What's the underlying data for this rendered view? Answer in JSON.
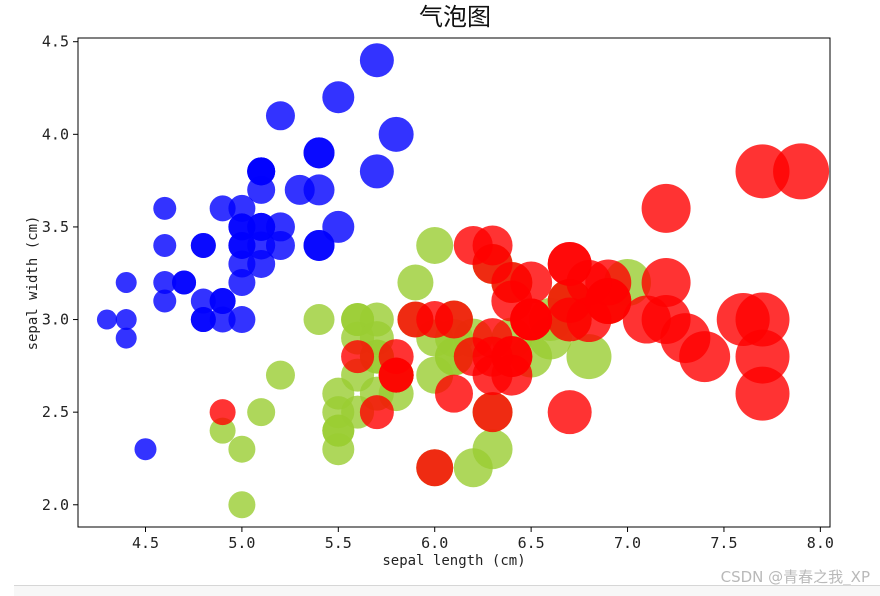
{
  "watermark": "CSDN @青春之我_XP",
  "chart_data": {
    "type": "scatter",
    "title": "气泡图",
    "xlabel": "sepal length (cm)",
    "ylabel": "sepal width (cm)",
    "xlim": [
      4.15,
      8.05
    ],
    "ylim": [
      1.88,
      4.52
    ],
    "x_ticks": [
      4.5,
      5.0,
      5.5,
      6.0,
      6.5,
      7.0,
      7.5,
      8.0
    ],
    "y_ticks": [
      2.0,
      2.5,
      3.0,
      3.5,
      4.0,
      4.5
    ],
    "x_tick_labels": [
      "4.5",
      "5.0",
      "5.5",
      "6.0",
      "6.5",
      "7.0",
      "7.5",
      "8.0"
    ],
    "y_tick_labels": [
      "2.0",
      "2.5",
      "3.0",
      "3.5",
      "4.0",
      "4.5"
    ],
    "grid": false,
    "alpha": 0.8,
    "series": [
      {
        "color": "#0000ff",
        "points": [
          [
            5.1,
            3.5
          ],
          [
            4.9,
            3.0
          ],
          [
            4.7,
            3.2
          ],
          [
            4.6,
            3.1
          ],
          [
            5.0,
            3.6
          ],
          [
            5.4,
            3.9
          ],
          [
            4.6,
            3.4
          ],
          [
            5.0,
            3.4
          ],
          [
            4.4,
            2.9
          ],
          [
            4.9,
            3.1
          ],
          [
            5.4,
            3.7
          ],
          [
            4.8,
            3.4
          ],
          [
            4.8,
            3.0
          ],
          [
            4.3,
            3.0
          ],
          [
            5.8,
            4.0
          ],
          [
            5.7,
            4.4
          ],
          [
            5.4,
            3.9
          ],
          [
            5.1,
            3.5
          ],
          [
            5.7,
            3.8
          ],
          [
            5.1,
            3.8
          ],
          [
            5.4,
            3.4
          ],
          [
            5.1,
            3.7
          ],
          [
            4.6,
            3.6
          ],
          [
            5.1,
            3.3
          ],
          [
            4.8,
            3.4
          ],
          [
            5.0,
            3.0
          ],
          [
            5.0,
            3.4
          ],
          [
            5.2,
            3.5
          ],
          [
            5.2,
            3.4
          ],
          [
            4.7,
            3.2
          ],
          [
            4.8,
            3.1
          ],
          [
            5.4,
            3.4
          ],
          [
            5.2,
            4.1
          ],
          [
            5.5,
            4.2
          ],
          [
            4.9,
            3.1
          ],
          [
            5.0,
            3.2
          ],
          [
            5.5,
            3.5
          ],
          [
            4.9,
            3.6
          ],
          [
            4.4,
            3.0
          ],
          [
            5.1,
            3.4
          ],
          [
            5.0,
            3.5
          ],
          [
            4.5,
            2.3
          ],
          [
            4.4,
            3.2
          ],
          [
            5.0,
            3.5
          ],
          [
            5.1,
            3.8
          ],
          [
            4.8,
            3.0
          ],
          [
            5.1,
            3.8
          ],
          [
            4.6,
            3.2
          ],
          [
            5.3,
            3.7
          ],
          [
            5.0,
            3.3
          ]
        ]
      },
      {
        "color": "#9acd32",
        "points": [
          [
            7.0,
            3.2
          ],
          [
            6.4,
            3.2
          ],
          [
            6.9,
            3.1
          ],
          [
            5.5,
            2.3
          ],
          [
            6.5,
            2.8
          ],
          [
            5.7,
            2.8
          ],
          [
            6.3,
            3.3
          ],
          [
            4.9,
            2.4
          ],
          [
            6.6,
            2.9
          ],
          [
            5.2,
            2.7
          ],
          [
            5.0,
            2.0
          ],
          [
            5.9,
            3.0
          ],
          [
            6.0,
            2.2
          ],
          [
            6.1,
            2.9
          ],
          [
            5.6,
            2.9
          ],
          [
            6.7,
            3.1
          ],
          [
            5.6,
            3.0
          ],
          [
            5.8,
            2.7
          ],
          [
            6.2,
            2.2
          ],
          [
            5.6,
            2.5
          ],
          [
            5.9,
            3.2
          ],
          [
            6.1,
            2.8
          ],
          [
            6.3,
            2.5
          ],
          [
            6.1,
            2.8
          ],
          [
            6.4,
            2.9
          ],
          [
            6.6,
            3.0
          ],
          [
            6.8,
            2.8
          ],
          [
            6.7,
            3.0
          ],
          [
            6.0,
            2.9
          ],
          [
            5.7,
            2.6
          ],
          [
            5.5,
            2.4
          ],
          [
            5.5,
            2.4
          ],
          [
            5.8,
            2.7
          ],
          [
            6.0,
            2.7
          ],
          [
            5.4,
            3.0
          ],
          [
            6.0,
            3.4
          ],
          [
            6.7,
            3.1
          ],
          [
            6.3,
            2.3
          ],
          [
            5.6,
            3.0
          ],
          [
            5.5,
            2.5
          ],
          [
            5.5,
            2.6
          ],
          [
            6.1,
            3.0
          ],
          [
            5.8,
            2.6
          ],
          [
            5.0,
            2.3
          ],
          [
            5.6,
            2.7
          ],
          [
            5.7,
            3.0
          ],
          [
            5.7,
            2.9
          ],
          [
            6.2,
            2.9
          ],
          [
            5.1,
            2.5
          ],
          [
            5.7,
            2.8
          ]
        ]
      },
      {
        "color": "#ff0000",
        "points": [
          [
            6.3,
            3.3
          ],
          [
            5.8,
            2.7
          ],
          [
            7.1,
            3.0
          ],
          [
            6.3,
            2.9
          ],
          [
            6.5,
            3.0
          ],
          [
            7.6,
            3.0
          ],
          [
            4.9,
            2.5
          ],
          [
            7.3,
            2.9
          ],
          [
            6.7,
            2.5
          ],
          [
            7.2,
            3.6
          ],
          [
            6.5,
            3.2
          ],
          [
            6.4,
            2.7
          ],
          [
            6.8,
            3.0
          ],
          [
            5.7,
            2.5
          ],
          [
            5.8,
            2.8
          ],
          [
            6.4,
            3.2
          ],
          [
            6.5,
            3.0
          ],
          [
            7.7,
            3.8
          ],
          [
            7.7,
            2.6
          ],
          [
            6.0,
            2.2
          ],
          [
            6.9,
            3.2
          ],
          [
            5.6,
            2.8
          ],
          [
            7.7,
            2.8
          ],
          [
            6.3,
            2.7
          ],
          [
            6.7,
            3.3
          ],
          [
            7.2,
            3.2
          ],
          [
            6.2,
            2.8
          ],
          [
            6.1,
            3.0
          ],
          [
            6.4,
            2.8
          ],
          [
            7.2,
            3.0
          ],
          [
            7.4,
            2.8
          ],
          [
            7.9,
            3.8
          ],
          [
            6.4,
            2.8
          ],
          [
            6.3,
            2.8
          ],
          [
            6.1,
            2.6
          ],
          [
            7.7,
            3.0
          ],
          [
            6.3,
            3.4
          ],
          [
            6.4,
            3.1
          ],
          [
            6.0,
            3.0
          ],
          [
            6.9,
            3.1
          ],
          [
            6.7,
            3.1
          ],
          [
            6.9,
            3.1
          ],
          [
            5.8,
            2.7
          ],
          [
            6.8,
            3.2
          ],
          [
            6.7,
            3.3
          ],
          [
            6.7,
            3.0
          ],
          [
            6.3,
            2.5
          ],
          [
            6.5,
            3.0
          ],
          [
            6.2,
            3.4
          ],
          [
            5.9,
            3.0
          ]
        ]
      }
    ]
  }
}
